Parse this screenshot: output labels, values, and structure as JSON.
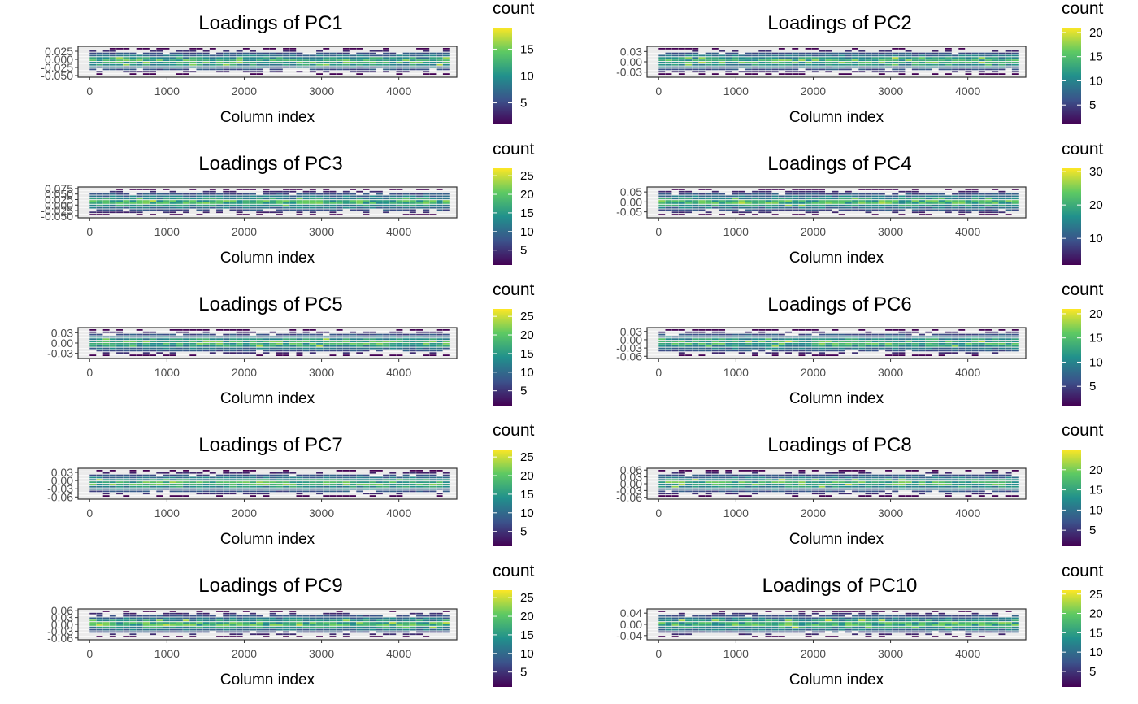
{
  "chart_data": [
    {
      "type": "heatmap",
      "title": "Loadings of PC1",
      "xlabel": "Column index",
      "ylabel": "",
      "xlim": [
        -150,
        4750
      ],
      "ylim": [
        -0.055,
        0.04
      ],
      "xticks": [
        0,
        1000,
        2000,
        3000,
        4000
      ],
      "xtick_labels": [
        "0",
        "1000",
        "2000",
        "3000",
        "4000"
      ],
      "yticks": [
        0.025,
        0.0,
        -0.025,
        -0.05
      ],
      "ytick_labels": [
        "0.025",
        "0.000",
        "-0.025",
        "-0.050"
      ],
      "legend": {
        "title": "count",
        "ticks": [
          5,
          10,
          15
        ],
        "tick_labels": [
          "5",
          "10",
          "15"
        ],
        "min": 1,
        "max": 19,
        "position": "right"
      },
      "grid": true,
      "colormap": "viridis"
    },
    {
      "type": "heatmap",
      "title": "Loadings of PC2",
      "xlabel": "Column index",
      "ylabel": "",
      "xlim": [
        -150,
        4750
      ],
      "ylim": [
        -0.045,
        0.045
      ],
      "xticks": [
        0,
        1000,
        2000,
        3000,
        4000
      ],
      "xtick_labels": [
        "0",
        "1000",
        "2000",
        "3000",
        "4000"
      ],
      "yticks": [
        0.03,
        0.0,
        -0.03
      ],
      "ytick_labels": [
        "0.03",
        "0.00",
        "-0.03"
      ],
      "legend": {
        "title": "count",
        "ticks": [
          5,
          10,
          15,
          20
        ],
        "tick_labels": [
          "5",
          "10",
          "15",
          "20"
        ],
        "min": 1,
        "max": 21,
        "position": "right"
      },
      "grid": true,
      "colormap": "viridis"
    },
    {
      "type": "heatmap",
      "title": "Loadings of PC3",
      "xlabel": "Column index",
      "ylabel": "",
      "xlim": [
        -150,
        4750
      ],
      "ylim": [
        -0.058,
        0.082
      ],
      "xticks": [
        0,
        1000,
        2000,
        3000,
        4000
      ],
      "xtick_labels": [
        "0",
        "1000",
        "2000",
        "3000",
        "4000"
      ],
      "yticks": [
        0.075,
        0.05,
        0.025,
        0.0,
        -0.025,
        -0.05
      ],
      "ytick_labels": [
        "0.075",
        "0.050",
        "0.025",
        "0.000",
        "-0.025",
        "-0.050"
      ],
      "legend": {
        "title": "count",
        "ticks": [
          5,
          10,
          15,
          20,
          25
        ],
        "tick_labels": [
          "5",
          "10",
          "15",
          "20",
          "25"
        ],
        "min": 1,
        "max": 27,
        "position": "right"
      },
      "grid": true,
      "colormap": "viridis"
    },
    {
      "type": "heatmap",
      "title": "Loadings of PC4",
      "xlabel": "Column index",
      "ylabel": "",
      "xlim": [
        -150,
        4750
      ],
      "ylim": [
        -0.08,
        0.075
      ],
      "xticks": [
        0,
        1000,
        2000,
        3000,
        4000
      ],
      "xtick_labels": [
        "0",
        "1000",
        "2000",
        "3000",
        "4000"
      ],
      "yticks": [
        0.05,
        0.0,
        -0.05
      ],
      "ytick_labels": [
        "0.05",
        "0.00",
        "-0.05"
      ],
      "legend": {
        "title": "count",
        "ticks": [
          10,
          20,
          30
        ],
        "tick_labels": [
          "10",
          "20",
          "30"
        ],
        "min": 2,
        "max": 31,
        "position": "right"
      },
      "grid": true,
      "colormap": "viridis"
    },
    {
      "type": "heatmap",
      "title": "Loadings of PC5",
      "xlabel": "Column index",
      "ylabel": "",
      "xlim": [
        -150,
        4750
      ],
      "ylim": [
        -0.045,
        0.045
      ],
      "xticks": [
        0,
        1000,
        2000,
        3000,
        4000
      ],
      "xtick_labels": [
        "0",
        "1000",
        "2000",
        "3000",
        "4000"
      ],
      "yticks": [
        0.03,
        0.0,
        -0.03
      ],
      "ytick_labels": [
        "0.03",
        "0.00",
        "-0.03"
      ],
      "legend": {
        "title": "count",
        "ticks": [
          5,
          10,
          15,
          20,
          25
        ],
        "tick_labels": [
          "5",
          "10",
          "15",
          "20",
          "25"
        ],
        "min": 1,
        "max": 27,
        "position": "right"
      },
      "grid": true,
      "colormap": "viridis"
    },
    {
      "type": "heatmap",
      "title": "Loadings of PC6",
      "xlabel": "Column index",
      "ylabel": "",
      "xlim": [
        -150,
        4750
      ],
      "ylim": [
        -0.068,
        0.044
      ],
      "xticks": [
        0,
        1000,
        2000,
        3000,
        4000
      ],
      "xtick_labels": [
        "0",
        "1000",
        "2000",
        "3000",
        "4000"
      ],
      "yticks": [
        0.03,
        0.0,
        -0.03,
        -0.06
      ],
      "ytick_labels": [
        "0.03",
        "0.00",
        "-0.03",
        "-0.06"
      ],
      "legend": {
        "title": "count",
        "ticks": [
          5,
          10,
          15,
          20
        ],
        "tick_labels": [
          "5",
          "10",
          "15",
          "20"
        ],
        "min": 1,
        "max": 21,
        "position": "right"
      },
      "grid": true,
      "colormap": "viridis"
    },
    {
      "type": "heatmap",
      "title": "Loadings of PC7",
      "xlabel": "Column index",
      "ylabel": "",
      "xlim": [
        -150,
        4750
      ],
      "ylim": [
        -0.068,
        0.045
      ],
      "xticks": [
        0,
        1000,
        2000,
        3000,
        4000
      ],
      "xtick_labels": [
        "0",
        "1000",
        "2000",
        "3000",
        "4000"
      ],
      "yticks": [
        0.03,
        0.0,
        -0.03,
        -0.06
      ],
      "ytick_labels": [
        "0.03",
        "0.00",
        "-0.03",
        "-0.06"
      ],
      "legend": {
        "title": "count",
        "ticks": [
          5,
          10,
          15,
          20,
          25
        ],
        "tick_labels": [
          "5",
          "10",
          "15",
          "20",
          "25"
        ],
        "min": 1,
        "max": 27,
        "position": "right"
      },
      "grid": true,
      "colormap": "viridis"
    },
    {
      "type": "heatmap",
      "title": "Loadings of PC8",
      "xlabel": "Column index",
      "ylabel": "",
      "xlim": [
        -150,
        4750
      ],
      "ylim": [
        -0.068,
        0.068
      ],
      "xticks": [
        0,
        1000,
        2000,
        3000,
        4000
      ],
      "xtick_labels": [
        "0",
        "1000",
        "2000",
        "3000",
        "4000"
      ],
      "yticks": [
        0.06,
        0.03,
        0.0,
        -0.03,
        -0.06
      ],
      "ytick_labels": [
        "0.06",
        "0.03",
        "0.00",
        "-0.03",
        "-0.06"
      ],
      "legend": {
        "title": "count",
        "ticks": [
          5,
          10,
          15,
          20
        ],
        "tick_labels": [
          "5",
          "10",
          "15",
          "20"
        ],
        "min": 1,
        "max": 25,
        "position": "right"
      },
      "grid": true,
      "colormap": "viridis"
    },
    {
      "type": "heatmap",
      "title": "Loadings of PC9",
      "xlabel": "Column index",
      "ylabel": "",
      "xlim": [
        -150,
        4750
      ],
      "ylim": [
        -0.068,
        0.068
      ],
      "xticks": [
        0,
        1000,
        2000,
        3000,
        4000
      ],
      "xtick_labels": [
        "0",
        "1000",
        "2000",
        "3000",
        "4000"
      ],
      "yticks": [
        0.06,
        0.03,
        0.0,
        -0.03,
        -0.06
      ],
      "ytick_labels": [
        "0.06",
        "0.03",
        "0.00",
        "-0.03",
        "-0.06"
      ],
      "legend": {
        "title": "count",
        "ticks": [
          5,
          10,
          15,
          20,
          25
        ],
        "tick_labels": [
          "5",
          "10",
          "15",
          "20",
          "25"
        ],
        "min": 1,
        "max": 27,
        "position": "right"
      },
      "grid": true,
      "colormap": "viridis"
    },
    {
      "type": "heatmap",
      "title": "Loadings of PC10",
      "xlabel": "Column index",
      "ylabel": "",
      "xlim": [
        -150,
        4750
      ],
      "ylim": [
        -0.055,
        0.055
      ],
      "xticks": [
        0,
        1000,
        2000,
        3000,
        4000
      ],
      "xtick_labels": [
        "0",
        "1000",
        "2000",
        "3000",
        "4000"
      ],
      "yticks": [
        0.04,
        0.0,
        -0.04
      ],
      "ytick_labels": [
        "0.04",
        "0.00",
        "-0.04"
      ],
      "legend": {
        "title": "count",
        "ticks": [
          5,
          10,
          15,
          20,
          25
        ],
        "tick_labels": [
          "5",
          "10",
          "15",
          "20",
          "25"
        ],
        "min": 1,
        "max": 26,
        "position": "right"
      },
      "grid": true,
      "colormap": "viridis"
    }
  ],
  "colors": {
    "panel_background": "#ebebeb",
    "panel_border": "#333333",
    "grid": "#ffffff",
    "viridis": [
      "#440154",
      "#3b528b",
      "#21908c",
      "#5dc963",
      "#fde725"
    ]
  }
}
